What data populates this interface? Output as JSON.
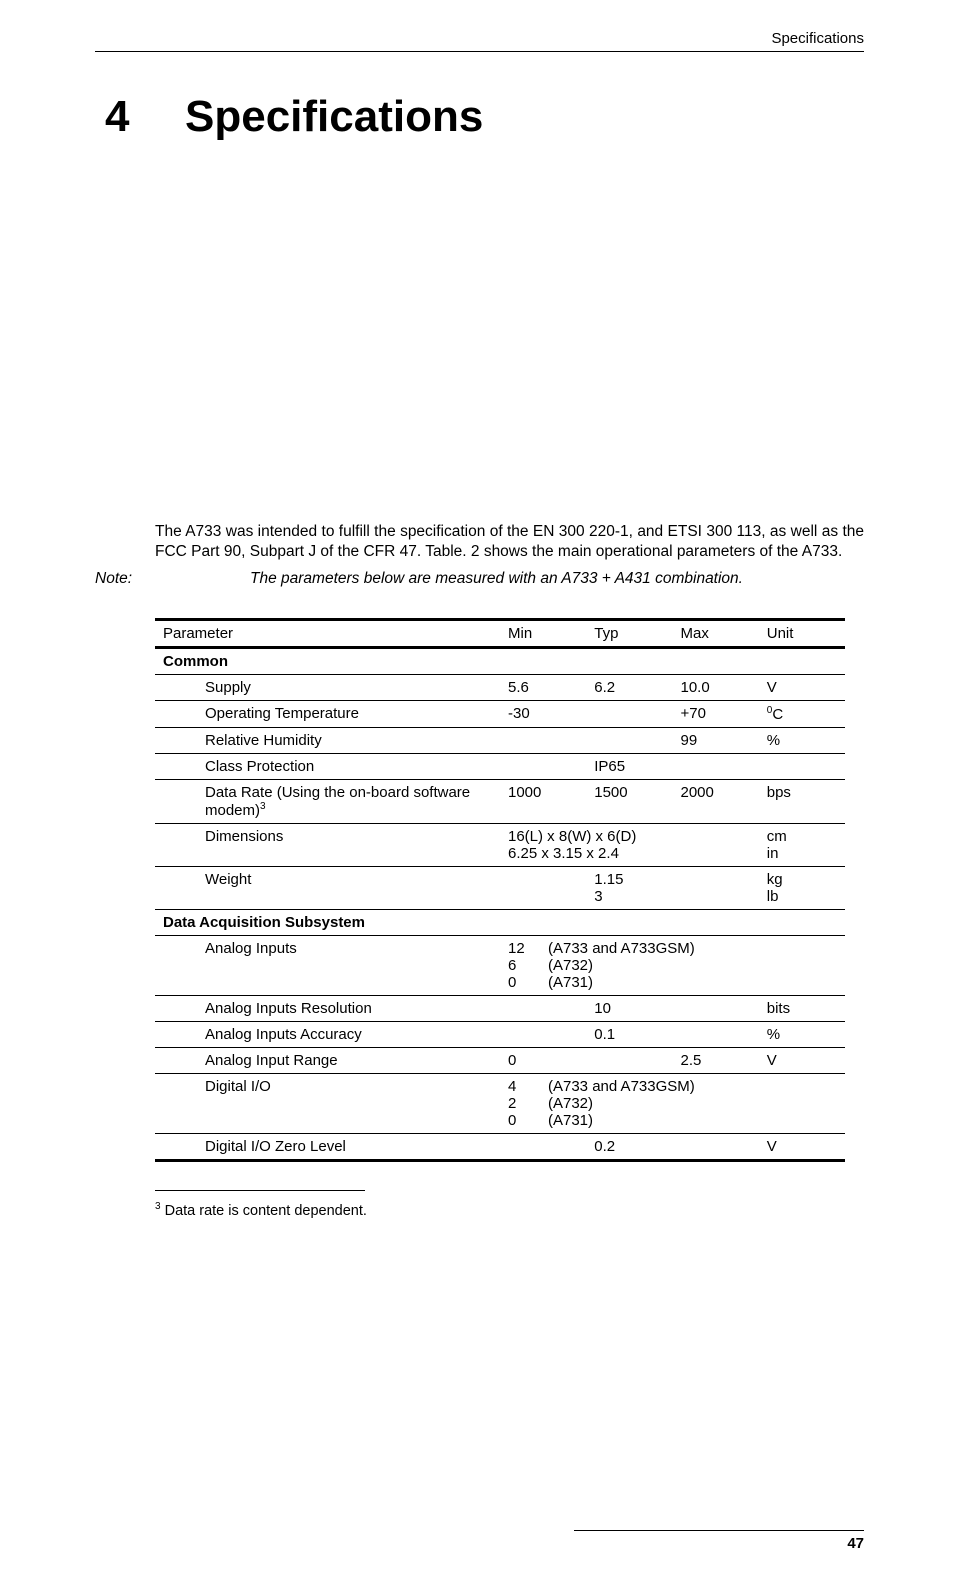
{
  "header": {
    "title": "Specifications"
  },
  "chapter": {
    "number": "4",
    "title": "Specifications"
  },
  "intro": "The A733 was intended to fulfill the specification of the EN 300 220-1, and ETSI 300 113, as well as the FCC Part 90, Subpart J of the CFR 47. Table. 2 shows the main operational parameters of the A733.",
  "note": {
    "label": "Note:",
    "text": "The parameters below are measured with an A733 + A431 combination."
  },
  "table": {
    "header": {
      "param": "Parameter",
      "min": "Min",
      "typ": "Typ",
      "max": "Max",
      "unit": "Unit"
    },
    "sections": {
      "common": "Common",
      "daq": "Data Acquisition Subsystem"
    },
    "rows": {
      "supply": {
        "param": "Supply",
        "min": "5.6",
        "typ": "6.2",
        "max": "10.0",
        "unit": "V"
      },
      "optemp": {
        "param": "Operating Temperature",
        "min": "-30",
        "typ": "",
        "max": "+70",
        "unit_pre": "0",
        "unit_post": "C"
      },
      "relhum": {
        "param": "Relative Humidity",
        "min": "",
        "typ": "",
        "max": "99",
        "unit": "%"
      },
      "classprot": {
        "param": "Class Protection",
        "min": "",
        "typ": "IP65",
        "max": "",
        "unit": ""
      },
      "datarate": {
        "param_pre": "Data Rate (Using the on-board software modem)",
        "param_sup": "3",
        "min": "1000",
        "typ": "1500",
        "max": "2000",
        "unit": "bps"
      },
      "dimensions": {
        "param": "Dimensions",
        "line1": "16(L) x 8(W) x 6(D)",
        "line2": "6.25 x 3.15 x 2.4",
        "unit1": "cm",
        "unit2": "in"
      },
      "weight": {
        "param": "Weight",
        "min": "",
        "typ1": "1.15",
        "typ2": "3",
        "max": "",
        "unit1": "kg",
        "unit2": "lb"
      },
      "analoginputs": {
        "param": "Analog Inputs",
        "n1": "12",
        "t1": "(A733 and A733GSM)",
        "n2": "6",
        "t2": "(A732)",
        "n3": "0",
        "t3": "(A731)",
        "unit": ""
      },
      "analogres": {
        "param": "Analog Inputs Resolution",
        "min": "",
        "typ": "10",
        "max": "",
        "unit": "bits"
      },
      "analogacc": {
        "param": "Analog Inputs Accuracy",
        "min": "",
        "typ": "0.1",
        "max": "",
        "unit": "%"
      },
      "analogrange": {
        "param": "Analog Input Range",
        "min": "0",
        "typ": "",
        "max": "2.5",
        "unit": "V"
      },
      "digio": {
        "param": "Digital I/O",
        "n1": "4",
        "t1": "(A733 and A733GSM)",
        "n2": "2",
        "t2": "(A732)",
        "n3": "0",
        "t3": "(A731)",
        "unit": ""
      },
      "digiozero": {
        "param": "Digital I/O Zero Level",
        "min": "",
        "typ": "0.2",
        "max": "",
        "unit": "V"
      }
    }
  },
  "footnote": {
    "marker": "3",
    "text": " Data rate is content dependent."
  },
  "footer": {
    "page": "47"
  }
}
